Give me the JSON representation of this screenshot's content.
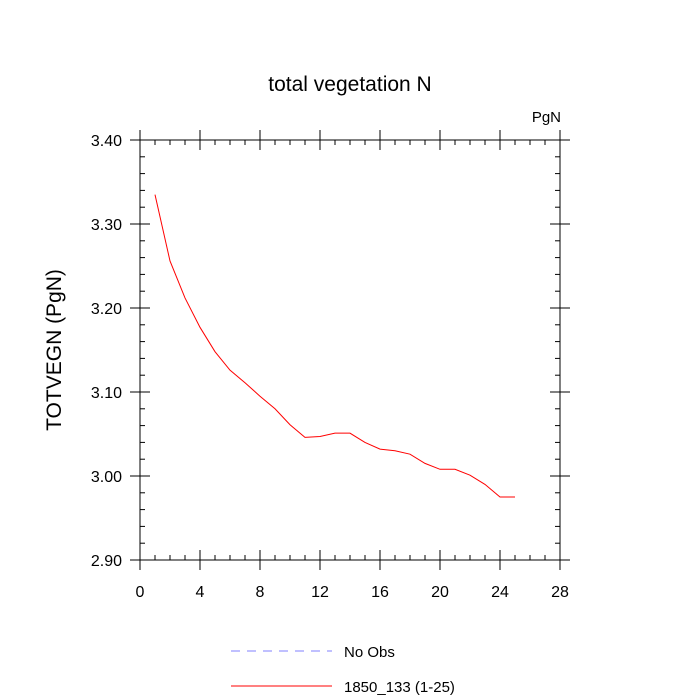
{
  "chart_data": {
    "type": "line",
    "title": "total vegetation N",
    "units_label": "PgN",
    "ylabel": "TOTVEGN  (PgN)",
    "xlabel": "",
    "xlim": [
      0,
      28
    ],
    "ylim": [
      2.9,
      3.4
    ],
    "x_ticks": [
      0,
      4,
      8,
      12,
      16,
      20,
      24,
      28
    ],
    "x_tick_labels": [
      "0",
      "4",
      "8",
      "12",
      "16",
      "20",
      "24",
      "28"
    ],
    "y_ticks": [
      2.9,
      3.0,
      3.1,
      3.2,
      3.3,
      3.4
    ],
    "y_tick_labels": [
      "2.90",
      "3.00",
      "3.10",
      "3.20",
      "3.30",
      "3.40"
    ],
    "x_minor_step": 1,
    "y_minor_step": 0.02,
    "grid": false,
    "legend_position": "bottom-center",
    "series": [
      {
        "name": "No Obs",
        "color": "#8080ff",
        "dash": "dashed",
        "x": [],
        "y": []
      },
      {
        "name": "1850_133 (1-25)",
        "color": "#ff0000",
        "dash": "solid",
        "x": [
          1,
          2,
          3,
          4,
          5,
          6,
          7,
          8,
          9,
          10,
          11,
          12,
          13,
          14,
          15,
          16,
          17,
          18,
          19,
          20,
          21,
          22,
          23,
          24,
          25
        ],
        "y": [
          3.335,
          3.256,
          3.212,
          3.177,
          3.148,
          3.126,
          3.111,
          3.095,
          3.08,
          3.061,
          3.046,
          3.047,
          3.051,
          3.051,
          3.04,
          3.032,
          3.03,
          3.026,
          3.015,
          3.008,
          3.008,
          3.001,
          2.99,
          2.975,
          2.975
        ]
      }
    ]
  }
}
